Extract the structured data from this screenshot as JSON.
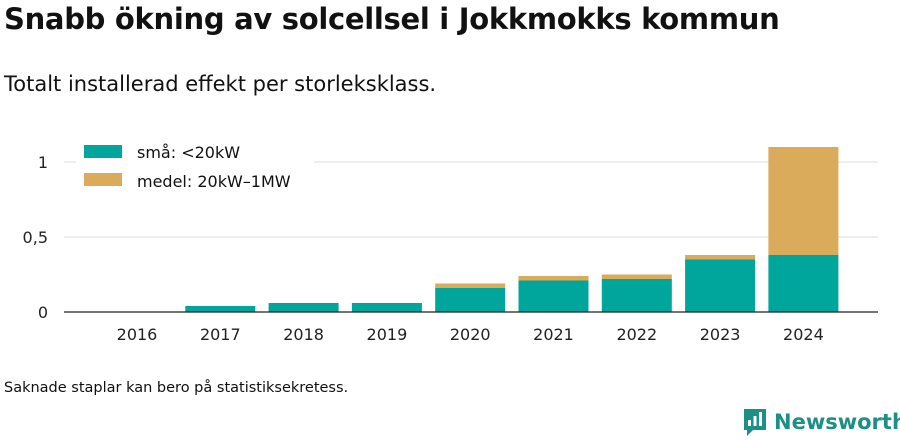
{
  "header": {
    "title": "Snabb ökning av solcellsel i Jokkmokks kommun",
    "subtitle": "Totalt installerad effekt per storleksklass."
  },
  "footer": {
    "note": "Saknade staplar kan bero på statistiksekretess.",
    "brand": "Newsworthy"
  },
  "chart_data": {
    "type": "bar",
    "stacked": true,
    "categories": [
      "2016",
      "2017",
      "2018",
      "2019",
      "2020",
      "2021",
      "2022",
      "2023",
      "2024"
    ],
    "series": [
      {
        "name": "små: <20kW",
        "color": "#00a59b",
        "values": [
          0,
          0.04,
          0.06,
          0.06,
          0.16,
          0.21,
          0.22,
          0.35,
          0.38
        ]
      },
      {
        "name": "medel: 20kW–1MW",
        "color": "#d9ab5a",
        "values": [
          0,
          0,
          0,
          0,
          0.03,
          0.03,
          0.03,
          0.03,
          0.72
        ]
      }
    ],
    "yticks": [
      {
        "value": 0,
        "label": "0"
      },
      {
        "value": 0.5,
        "label": "0,5"
      },
      {
        "value": 1,
        "label": "1"
      }
    ],
    "ylim": [
      0,
      1.1
    ],
    "grid": true,
    "legend": "top-left"
  }
}
